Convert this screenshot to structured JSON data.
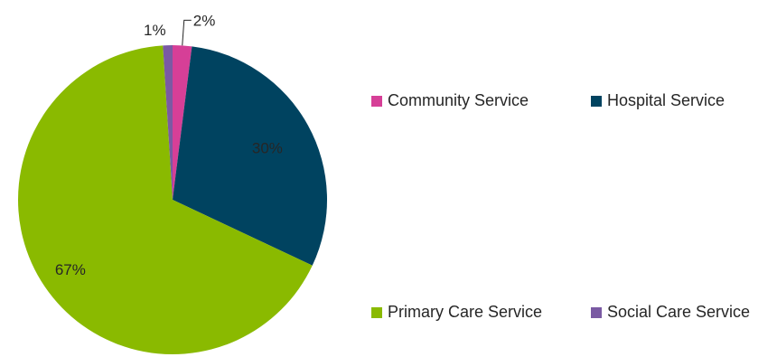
{
  "chart_data": {
    "type": "pie",
    "title": "",
    "slices": [
      {
        "name": "Community Service",
        "value": 2,
        "label": "2%",
        "color": "#d63f97"
      },
      {
        "name": "Hospital Service",
        "value": 30,
        "label": "30%",
        "color": "#004360"
      },
      {
        "name": "Primary Care Service",
        "value": 67,
        "label": "67%",
        "color": "#8aba00"
      },
      {
        "name": "Social Care Service",
        "value": 1,
        "label": "1%",
        "color": "#7a5aa3"
      }
    ],
    "legend_position": "right"
  }
}
